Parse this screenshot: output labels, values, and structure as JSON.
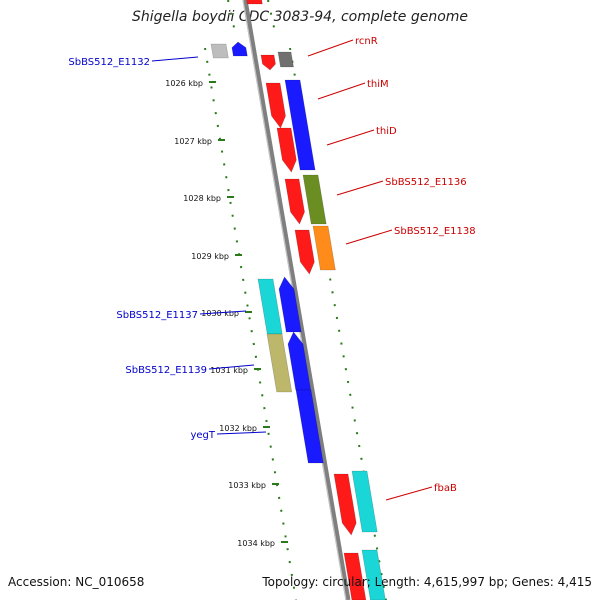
{
  "title": "Shigella boydii CDC 3083-94, complete genome",
  "footer": {
    "accession": "Accession: NC_010658",
    "summary": "Topology: circular; Length: 4,615,997 bp; Genes: 4,415"
  },
  "colors": {
    "backbone": "#8a8a8a",
    "ruler": "#2a7a1a",
    "label_right": "#cc0000",
    "label_left": "#0000cc"
  },
  "ticks": [
    "1026 kbp",
    "1027 kbp",
    "1028 kbp",
    "1029 kbp",
    "1030 kbp",
    "1031 kbp",
    "1032 kbp",
    "1033 kbp",
    "1034 kbp"
  ],
  "gene_labels": {
    "right": [
      "rcnR",
      "thiM",
      "thiD",
      "SbBS512_E1136",
      "SbBS512_E1138",
      "fbaB"
    ],
    "left": [
      "SbBS512_E1132",
      "SbBS512_E1137",
      "SbBS512_E1139",
      "yegT"
    ]
  }
}
